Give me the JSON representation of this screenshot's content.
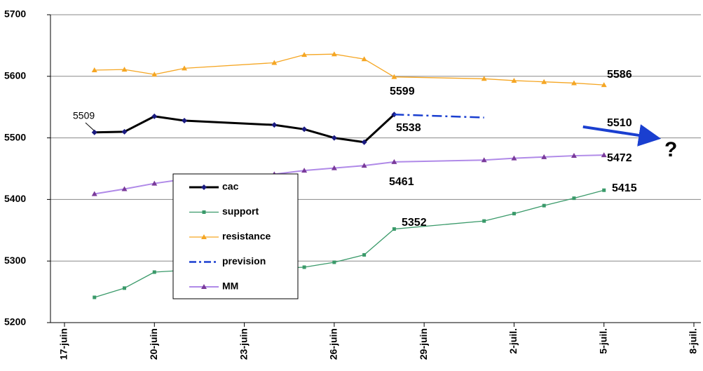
{
  "chart_data": {
    "type": "line",
    "x": [
      "18-juin",
      "19-juin",
      "20-juin",
      "21-juin",
      "24-juin",
      "25-juin",
      "26-juin",
      "27-juin",
      "28-juin",
      "1-juil.",
      "2-juil.",
      "3-juil.",
      "4-juil.",
      "5-juil.",
      "7-juil."
    ],
    "series": [
      {
        "name": "cac",
        "color": "#000000",
        "values": [
          5509,
          5510,
          5535,
          5528,
          5521,
          5514,
          5500,
          5493,
          5538,
          null,
          null,
          null,
          null,
          null,
          null
        ]
      },
      {
        "name": "support",
        "color": "#3a9a6a",
        "values": [
          5241,
          5256,
          5282,
          5285,
          5288,
          5290,
          5298,
          5310,
          5352,
          5365,
          5377,
          5390,
          5402,
          5415,
          null
        ]
      },
      {
        "name": "resistance",
        "color": "#f5a623",
        "values": [
          5610,
          5611,
          5603,
          5613,
          5622,
          5635,
          5636,
          5628,
          5599,
          5596,
          5593,
          5591,
          5589,
          5586,
          null
        ]
      },
      {
        "name": "prevision",
        "color": "#1a3fd0",
        "values": [
          null,
          null,
          null,
          null,
          null,
          null,
          null,
          null,
          5538,
          5533,
          null,
          null,
          5520,
          null,
          5500
        ]
      },
      {
        "name": "MM",
        "color": "#b08ae8",
        "values": [
          5409,
          5417,
          5426,
          5433,
          5441,
          5447,
          5451,
          5455,
          5461,
          5464,
          5467,
          5469,
          5471,
          5472,
          null
        ]
      }
    ],
    "xlim": [
      "17-juin",
      "8-juil."
    ],
    "xticks": [
      "17-juin",
      "20-juin",
      "23-juin",
      "26-juin",
      "29-juin",
      "2-juil.",
      "5-juil.",
      "8-juil."
    ],
    "ylim": [
      5200,
      5700
    ],
    "yticks": [
      5200,
      5300,
      5400,
      5500,
      5600,
      5700
    ],
    "grid": true,
    "annotations": [
      {
        "text": "5509",
        "color": "#000000"
      },
      {
        "text": "5599",
        "color": "#f07020"
      },
      {
        "text": "5538",
        "color": "#2222dd"
      },
      {
        "text": "5510",
        "color": "#2222dd"
      },
      {
        "text": "5586",
        "color": "#f07020"
      },
      {
        "text": "5472",
        "color": "#c399f2"
      },
      {
        "text": "5461",
        "color": "#c399f2"
      },
      {
        "text": "5352",
        "color": "#3a9a6a"
      },
      {
        "text": "5415",
        "color": "#3a9a6a"
      },
      {
        "text": "?",
        "color": "#1a6fc0"
      }
    ]
  }
}
